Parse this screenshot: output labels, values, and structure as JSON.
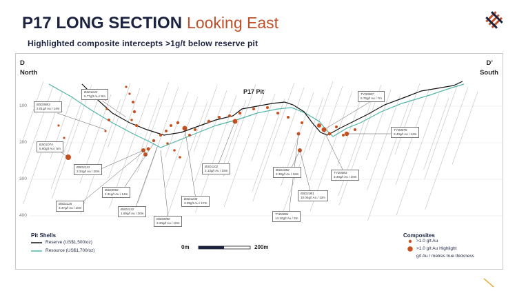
{
  "title": "P17 LONG SECTION",
  "title_suffix": "Looking East",
  "subtitle": "Highlighted composite intercepts >1g/t below reserve pit",
  "section": {
    "left_label": "D",
    "left_dir": "North",
    "right_label": "D’",
    "right_dir": "South",
    "pit_label": "P17 Pit",
    "depth_ticks": [
      "100",
      "200",
      "300",
      "400"
    ]
  },
  "intercepts": [
    {
      "hole": "BSD0883",
      "value": "2.01g/t  Au / 14m"
    },
    {
      "hole": "BSD1122",
      "value": "5.77g/t  Au / 6m"
    },
    {
      "hole": "BSD1074",
      "value": "5.60g/t  Au / 5m"
    },
    {
      "hole": "BSD1131",
      "value": "3.34g/t  Au / 20m"
    },
    {
      "hole": "BSD1102",
      "value": "2.13g/t  Au / 15m"
    },
    {
      "hole": "BSD1082",
      "value": "2.30g/t  Au / 18m"
    },
    {
      "hole": "TYD0087",
      "value": "5.76g/t  Au / 7m"
    },
    {
      "hole": "TYD0078",
      "value": "3.40g/t  Au / 12m"
    },
    {
      "hole": "TYD0083",
      "value": "3.30g/t  Au / 10m"
    },
    {
      "hole": "BSD1081",
      "value": "10.04g/t  Au / 12m"
    },
    {
      "hole": "TYD0084",
      "value": "14.10g/t  Au / 2m"
    },
    {
      "hole": "BSD1108",
      "value": "3.09g/t  Au / 17m"
    },
    {
      "hole": "BSD0992",
      "value": "2.31g/t  Au / 14m"
    },
    {
      "hole": "BSD1125",
      "value": "3.47g/t  Au / 10m"
    },
    {
      "hole": "BSD1132",
      "value": "1.69g/t  Au / 30m"
    },
    {
      "hole": "BSD0980",
      "value": "3.34g/t  Au / 10m"
    }
  ],
  "legend": {
    "pit_shells_title": "Pit Shells",
    "reserve": "Reserve (US$1,500/oz)",
    "resource": "Resource (US$1,700/oz)",
    "composites_title": "Composites",
    "small": ">1.0 g/t Au",
    "large": ">1.0 g/t Au Highlight",
    "note": "g/t Au / metres true thickness"
  },
  "scale": {
    "start": "0m",
    "end": "200m"
  },
  "colors": {
    "navy": "#1b2340",
    "accent": "#c0502a",
    "reserve": "#111111",
    "resource": "#4fb3a6",
    "composite": "#c8501e"
  }
}
